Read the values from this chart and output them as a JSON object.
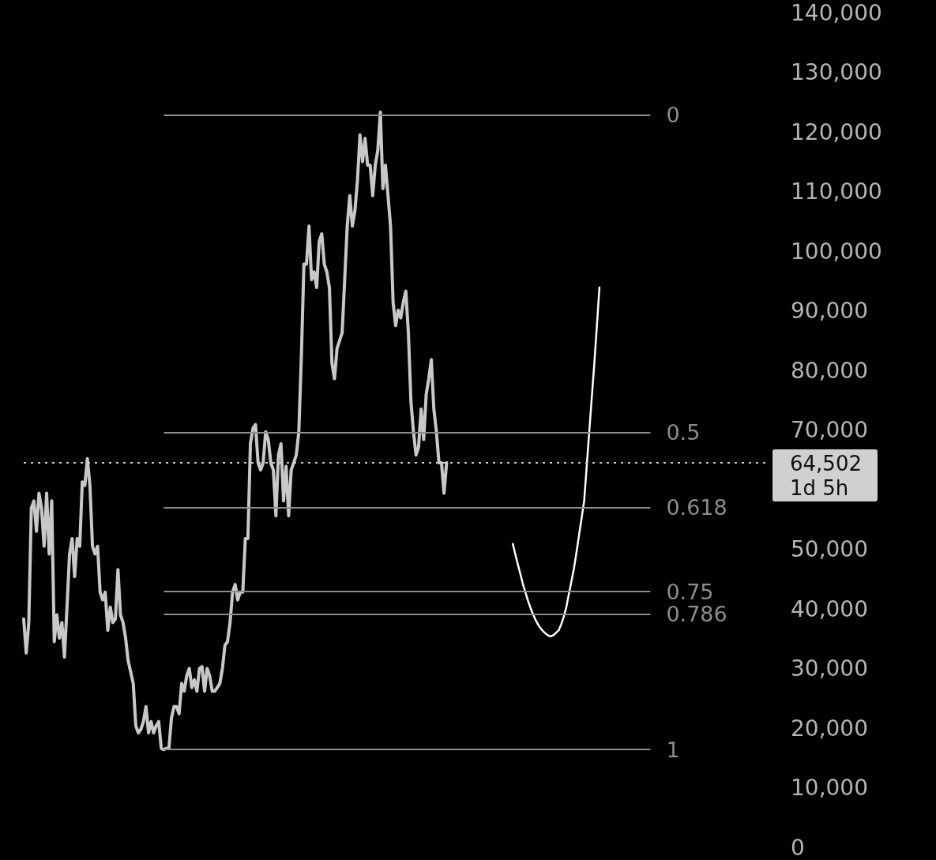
{
  "chart_data": {
    "type": "line",
    "categories": [
      null,
      null,
      null,
      null,
      null,
      null,
      null,
      null,
      null,
      null,
      null,
      null,
      null,
      null,
      null,
      null,
      null,
      null,
      null,
      null,
      null,
      null,
      null,
      null,
      null,
      null,
      null,
      null,
      null,
      null,
      null,
      null,
      null,
      null,
      null,
      null,
      null,
      null,
      null,
      null,
      null,
      null,
      null,
      null,
      null,
      null,
      null,
      null,
      null,
      null,
      null,
      null,
      null,
      null,
      null,
      null,
      null,
      null,
      null,
      null,
      null,
      null,
      null,
      null,
      null,
      null,
      null,
      null,
      null,
      null,
      null,
      null,
      null,
      null,
      null,
      null,
      null,
      null,
      null,
      null,
      null,
      null,
      null,
      null,
      null,
      null,
      null,
      null,
      null,
      null,
      null,
      null,
      null,
      null,
      null,
      null,
      null,
      null,
      null,
      null,
      null,
      null,
      null,
      null,
      null,
      null,
      null,
      null,
      null,
      null,
      null,
      null,
      null,
      null,
      null,
      null,
      null,
      null,
      null,
      null,
      null,
      null,
      null,
      null,
      null,
      null,
      null,
      null,
      null,
      null,
      null,
      null,
      null,
      null,
      null,
      null,
      null,
      null,
      null,
      null,
      null,
      null,
      null,
      null,
      null,
      null,
      null,
      null,
      null,
      null,
      null,
      null,
      null,
      null,
      null,
      null,
      null,
      null,
      null,
      null,
      null,
      null,
      null,
      null,
      null,
      null,
      null,
      null,
      null,
      null,
      null,
      null,
      null,
      null,
      null,
      null,
      null,
      null,
      null,
      null,
      null,
      null,
      null,
      null,
      null,
      null,
      null,
      null,
      null,
      null,
      null,
      null,
      null,
      null,
      null,
      null,
      null,
      null,
      null,
      null,
      null,
      null,
      null,
      null,
      null,
      null,
      null,
      null,
      null,
      null,
      null,
      null,
      null,
      null,
      null,
      null,
      null,
      null,
      null,
      null,
      null,
      null,
      null,
      null,
      null,
      null,
      null,
      null,
      null,
      null,
      null,
      null,
      null,
      null,
      null,
      null,
      null,
      null,
      null,
      null,
      null,
      null,
      null,
      null,
      null,
      null,
      null,
      null,
      null,
      null,
      null,
      null,
      null,
      null,
      null,
      null,
      null,
      null,
      null,
      null,
      null,
      null,
      null,
      null,
      null,
      null,
      null,
      null,
      null,
      null,
      null,
      null,
      null,
      null,
      null,
      null,
      null,
      null,
      null,
      null,
      null,
      null,
      null,
      null,
      null,
      null,
      null,
      null,
      null,
      null,
      null,
      null,
      null,
      null
    ],
    "series": [
      {
        "color": "#c8c8c8",
        "values": [
          38300,
          32600,
          37700,
          56900,
          58100,
          53000,
          59400,
          56900,
          50500,
          59400,
          49200,
          58100,
          34500,
          39000,
          35100,
          37700,
          31900,
          40300,
          49200,
          51800,
          45400,
          51800,
          50500,
          61300,
          60700,
          65200,
          60700,
          50500,
          49200,
          50500,
          42800,
          41500,
          42800,
          36400,
          40300,
          37700,
          38300,
          46600,
          39000,
          37700,
          35100,
          31300,
          29400,
          27500,
          20400,
          19200,
          19800,
          21100,
          23600,
          19200,
          21100,
          19200,
          20400,
          21100,
          16600,
          16400,
          16600,
          16600,
          21700,
          23600,
          23600,
          22400,
          27500,
          26200,
          28800,
          30000,
          26800,
          28100,
          26200,
          30000,
          30300,
          26200,
          30000,
          28800,
          26200,
          26200,
          26800,
          27500,
          30000,
          33900,
          34500,
          37700,
          42800,
          44100,
          41500,
          42800,
          42800,
          51800,
          51800,
          67700,
          70300,
          70900,
          64500,
          63300,
          64500,
          69700,
          68400,
          64500,
          63300,
          55600,
          65800,
          67700,
          58100,
          63900,
          55600,
          63300,
          64500,
          65800,
          69700,
          82400,
          97800,
          97800,
          104200,
          95200,
          96500,
          93900,
          101600,
          102900,
          97800,
          96500,
          93900,
          81200,
          78600,
          83700,
          85000,
          86300,
          95200,
          104200,
          109300,
          104200,
          106700,
          111800,
          119500,
          115000,
          118900,
          114400,
          114400,
          109300,
          114400,
          116900,
          123300,
          110500,
          114400,
          109300,
          104200,
          91400,
          87500,
          90100,
          88800,
          91400,
          93300,
          86300,
          74800,
          69700,
          65800,
          67100,
          73500,
          68400,
          76000,
          78600,
          81800,
          73500,
          69700,
          64500,
          64500,
          59400,
          64500,
          null,
          null,
          null,
          null,
          null,
          null,
          null,
          null,
          null,
          null,
          null,
          null,
          null,
          null,
          null,
          null,
          null,
          null,
          null,
          null,
          null,
          null,
          null,
          null,
          null,
          null,
          null,
          null,
          null,
          null,
          null,
          null,
          null,
          null,
          null,
          null,
          null,
          null,
          null,
          null,
          null,
          null,
          null,
          null,
          null,
          null,
          null,
          null,
          null,
          null,
          null,
          null,
          null,
          null,
          null,
          null,
          null,
          null,
          null,
          null,
          null,
          null,
          null,
          null,
          null,
          null,
          null,
          null,
          null,
          null,
          null,
          null,
          null,
          null,
          null,
          null,
          null,
          null,
          null,
          null,
          null,
          null,
          null,
          null,
          null,
          null,
          null,
          null,
          null,
          null,
          null,
          null,
          null,
          null,
          null,
          null,
          null,
          null,
          null,
          null,
          null,
          null,
          null,
          null,
          null,
          null,
          null,
          null,
          null,
          null,
          null,
          null,
          null,
          null,
          null,
          null,
          null,
          null,
          null,
          null,
          null,
          null,
          null,
          null,
          null,
          null,
          null
        ]
      },
      {
        "color": "#ffffff",
        "values": [
          null,
          null,
          null,
          null,
          null,
          null,
          null,
          null,
          null,
          null,
          null,
          null,
          null,
          null,
          null,
          null,
          null,
          null,
          null,
          null,
          null,
          null,
          null,
          null,
          null,
          null,
          null,
          null,
          null,
          null,
          null,
          null,
          null,
          null,
          null,
          null,
          null,
          null,
          null,
          null,
          null,
          null,
          null,
          null,
          null,
          null,
          null,
          null,
          null,
          null,
          null,
          null,
          null,
          null,
          null,
          null,
          null,
          null,
          null,
          null,
          null,
          null,
          null,
          null,
          null,
          null,
          null,
          null,
          null,
          null,
          null,
          null,
          null,
          null,
          null,
          null,
          null,
          null,
          null,
          null,
          null,
          null,
          null,
          null,
          null,
          null,
          null,
          null,
          null,
          null,
          null,
          null,
          null,
          null,
          null,
          null,
          null,
          null,
          null,
          null,
          null,
          null,
          null,
          null,
          null,
          null,
          null,
          null,
          null,
          null,
          null,
          null,
          null,
          null,
          null,
          null,
          null,
          null,
          null,
          null,
          null,
          null,
          null,
          null,
          null,
          null,
          null,
          null,
          null,
          null,
          null,
          null,
          null,
          null,
          null,
          null,
          null,
          null,
          null,
          null,
          null,
          null,
          null,
          null,
          null,
          null,
          null,
          null,
          null,
          null,
          null,
          null,
          null,
          null,
          null,
          null,
          null,
          null,
          null,
          null,
          null,
          null,
          null,
          null,
          null,
          null,
          null,
          null,
          null,
          null,
          null,
          null,
          null,
          null,
          null,
          null,
          null,
          null,
          null,
          null,
          null,
          null,
          null,
          null,
          null,
          null,
          null,
          null,
          null,
          null,
          null,
          null,
          50900,
          49100,
          47400,
          45800,
          44100,
          42700,
          41300,
          40100,
          39000,
          38100,
          37300,
          36700,
          36200,
          35800,
          35500,
          35400,
          35600,
          36000,
          36400,
          37400,
          38700,
          40300,
          42500,
          44600,
          46800,
          49500,
          52400,
          55200,
          58100,
          63900,
          69700,
          75500,
          81200,
          87500,
          93900,
          null,
          null,
          null,
          null,
          null,
          null,
          null,
          null,
          null,
          null,
          null,
          null,
          null,
          null,
          null,
          null,
          null,
          null,
          null,
          null,
          null,
          null,
          null,
          null,
          null,
          null,
          null,
          null,
          null,
          null,
          null,
          null,
          null,
          null,
          null,
          null,
          null,
          null,
          null,
          null,
          null,
          null,
          null,
          null,
          null,
          null,
          null,
          null,
          null,
          null,
          null,
          null,
          null,
          null,
          null,
          null,
          null,
          null,
          null,
          null,
          null,
          null,
          null,
          null,
          null,
          null,
          null
        ]
      }
    ],
    "ylim": [
      0,
      140000
    ],
    "yticks": [
      {
        "value": 0,
        "label": "0"
      },
      {
        "value": 10000,
        "label": "10,000"
      },
      {
        "value": 20000,
        "label": "20,000"
      },
      {
        "value": 30000,
        "label": "30,000"
      },
      {
        "value": 40000,
        "label": "40,000"
      },
      {
        "value": 50000,
        "label": "50,000"
      },
      {
        "value": 70000,
        "label": "70,000"
      },
      {
        "value": 80000,
        "label": "80,000"
      },
      {
        "value": 90000,
        "label": "90,000"
      },
      {
        "value": 100000,
        "label": "100,000"
      },
      {
        "value": 110000,
        "label": "110,000"
      },
      {
        "value": 120000,
        "label": "120,000"
      },
      {
        "value": 130000,
        "label": "130,000"
      },
      {
        "value": 140000,
        "label": "140,000"
      }
    ],
    "ref_lines": [
      {
        "axis": "y",
        "value": 122800,
        "color": "#8c8c8c"
      },
      {
        "axis": "y",
        "value": 69600,
        "color": "#8c8c8c"
      },
      {
        "axis": "y",
        "value": 57000,
        "color": "#8c8c8c"
      },
      {
        "axis": "y",
        "value": 42900,
        "color": "#8c8c8c"
      },
      {
        "axis": "y",
        "value": 39100,
        "color": "#8c8c8c"
      },
      {
        "axis": "y",
        "value": 16400,
        "color": "#8c8c8c"
      },
      {
        "axis": "y",
        "value": 64502,
        "label": "64,502\n1d 5h",
        "color": "#d0d0d0",
        "line_style": "dotted"
      }
    ],
    "annotations": [
      "0",
      "0.5",
      "0.618",
      "0.75",
      "0.786",
      "1"
    ],
    "grid": false,
    "line_style": "solid"
  }
}
